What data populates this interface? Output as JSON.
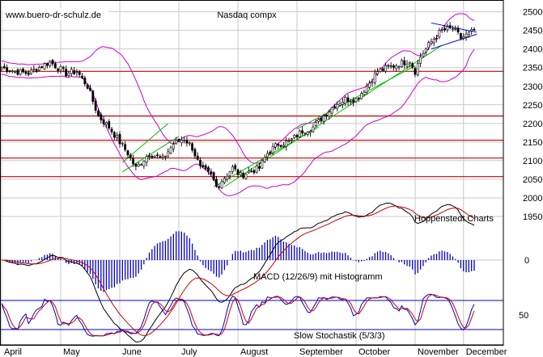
{
  "chart_data": [
    {
      "panel": "price",
      "type": "candlestick",
      "title": "Nasdaq compx",
      "source_label": "Hoppenstedt Charts",
      "watermark": "www.buero-dr-schulz.de",
      "x_tick_labels": [
        "April",
        "May",
        "June",
        "July",
        "August",
        "September",
        "October",
        "November",
        "December"
      ],
      "y_tick_labels": [
        "1950",
        "2000",
        "2050",
        "2100",
        "2150",
        "2200",
        "2250",
        "2300",
        "2350",
        "2400",
        "2450",
        "2500"
      ],
      "ylim": [
        1950,
        2510
      ],
      "grid": true,
      "num_sessions": 177,
      "month_start_index": [
        0,
        22,
        44,
        66,
        88,
        110,
        132,
        154,
        172
      ],
      "close_anchors": [
        [
          0,
          2350
        ],
        [
          5,
          2340
        ],
        [
          10,
          2335
        ],
        [
          15,
          2355
        ],
        [
          18,
          2365
        ],
        [
          20,
          2355
        ],
        [
          24,
          2335
        ],
        [
          28,
          2340
        ],
        [
          32,
          2300
        ],
        [
          36,
          2220
        ],
        [
          40,
          2190
        ],
        [
          44,
          2150
        ],
        [
          47,
          2120
        ],
        [
          50,
          2080
        ],
        [
          55,
          2120
        ],
        [
          60,
          2105
        ],
        [
          64,
          2145
        ],
        [
          68,
          2160
        ],
        [
          71,
          2135
        ],
        [
          74,
          2080
        ],
        [
          78,
          2060
        ],
        [
          80,
          2030
        ],
        [
          83,
          2055
        ],
        [
          86,
          2080
        ],
        [
          89,
          2060
        ],
        [
          92,
          2070
        ],
        [
          96,
          2080
        ],
        [
          99,
          2120
        ],
        [
          103,
          2145
        ],
        [
          107,
          2150
        ],
        [
          112,
          2180
        ],
        [
          116,
          2190
        ],
        [
          120,
          2220
        ],
        [
          124,
          2250
        ],
        [
          128,
          2265
        ],
        [
          132,
          2265
        ],
        [
          136,
          2300
        ],
        [
          140,
          2340
        ],
        [
          144,
          2350
        ],
        [
          148,
          2360
        ],
        [
          152,
          2370
        ],
        [
          154,
          2340
        ],
        [
          156,
          2380
        ],
        [
          160,
          2420
        ],
        [
          164,
          2450
        ],
        [
          168,
          2455
        ],
        [
          171,
          2430
        ],
        [
          174,
          2440
        ],
        [
          177,
          2455
        ]
      ],
      "horizontal_lines": [
        {
          "value": 2340,
          "color": "#cc0000"
        },
        {
          "value": 2220,
          "color": "#cc0000"
        },
        {
          "value": 2155,
          "color": "#cc0000"
        },
        {
          "value": 2107,
          "color": "#cc0000"
        },
        {
          "value": 2057,
          "color": "#cc0000"
        }
      ],
      "trendlines": [
        {
          "color": "#00bb00",
          "points": [
            [
              45,
              2070
            ],
            [
              66,
              2165
            ]
          ]
        },
        {
          "color": "#00bb00",
          "points": [
            [
              45,
              2095
            ],
            [
              62,
              2200
            ]
          ]
        },
        {
          "color": "#00bb00",
          "points": [
            [
              79,
              2030
            ],
            [
              118,
              2190
            ]
          ]
        },
        {
          "color": "#00bb00",
          "points": [
            [
              83,
              2030
            ],
            [
              164,
              2410
            ]
          ]
        },
        {
          "color": "#00bb00",
          "points": [
            [
              110,
              2185
            ],
            [
              154,
              2355
            ]
          ]
        },
        {
          "color": "#0000cc",
          "points": [
            [
              160,
              2470
            ],
            [
              177,
              2445
            ]
          ]
        },
        {
          "color": "#0000cc",
          "points": [
            [
              160,
              2400
            ],
            [
              177,
              2440
            ]
          ]
        }
      ],
      "bands": {
        "name": "Bollinger Bands",
        "color": "#cc00cc"
      },
      "candle_color": "#000000"
    },
    {
      "panel": "macd",
      "type": "line",
      "label": "MACD (12/26/9) mit Histogramm",
      "y_tick_labels": [
        "0"
      ],
      "series": [
        {
          "role": "macd",
          "color": "#000000"
        },
        {
          "role": "signal",
          "color": "#cc0000"
        },
        {
          "role": "histogram",
          "color": "#0000cc"
        }
      ]
    },
    {
      "panel": "stochastic",
      "type": "line",
      "label": "Slow Stochastik (5/3/3)",
      "y_tick_labels": [
        "50"
      ],
      "reference_lines": [
        80,
        20
      ],
      "series": [
        {
          "role": "%K",
          "color": "#0000cc"
        },
        {
          "role": "%D",
          "color": "#cc0000"
        }
      ]
    }
  ]
}
